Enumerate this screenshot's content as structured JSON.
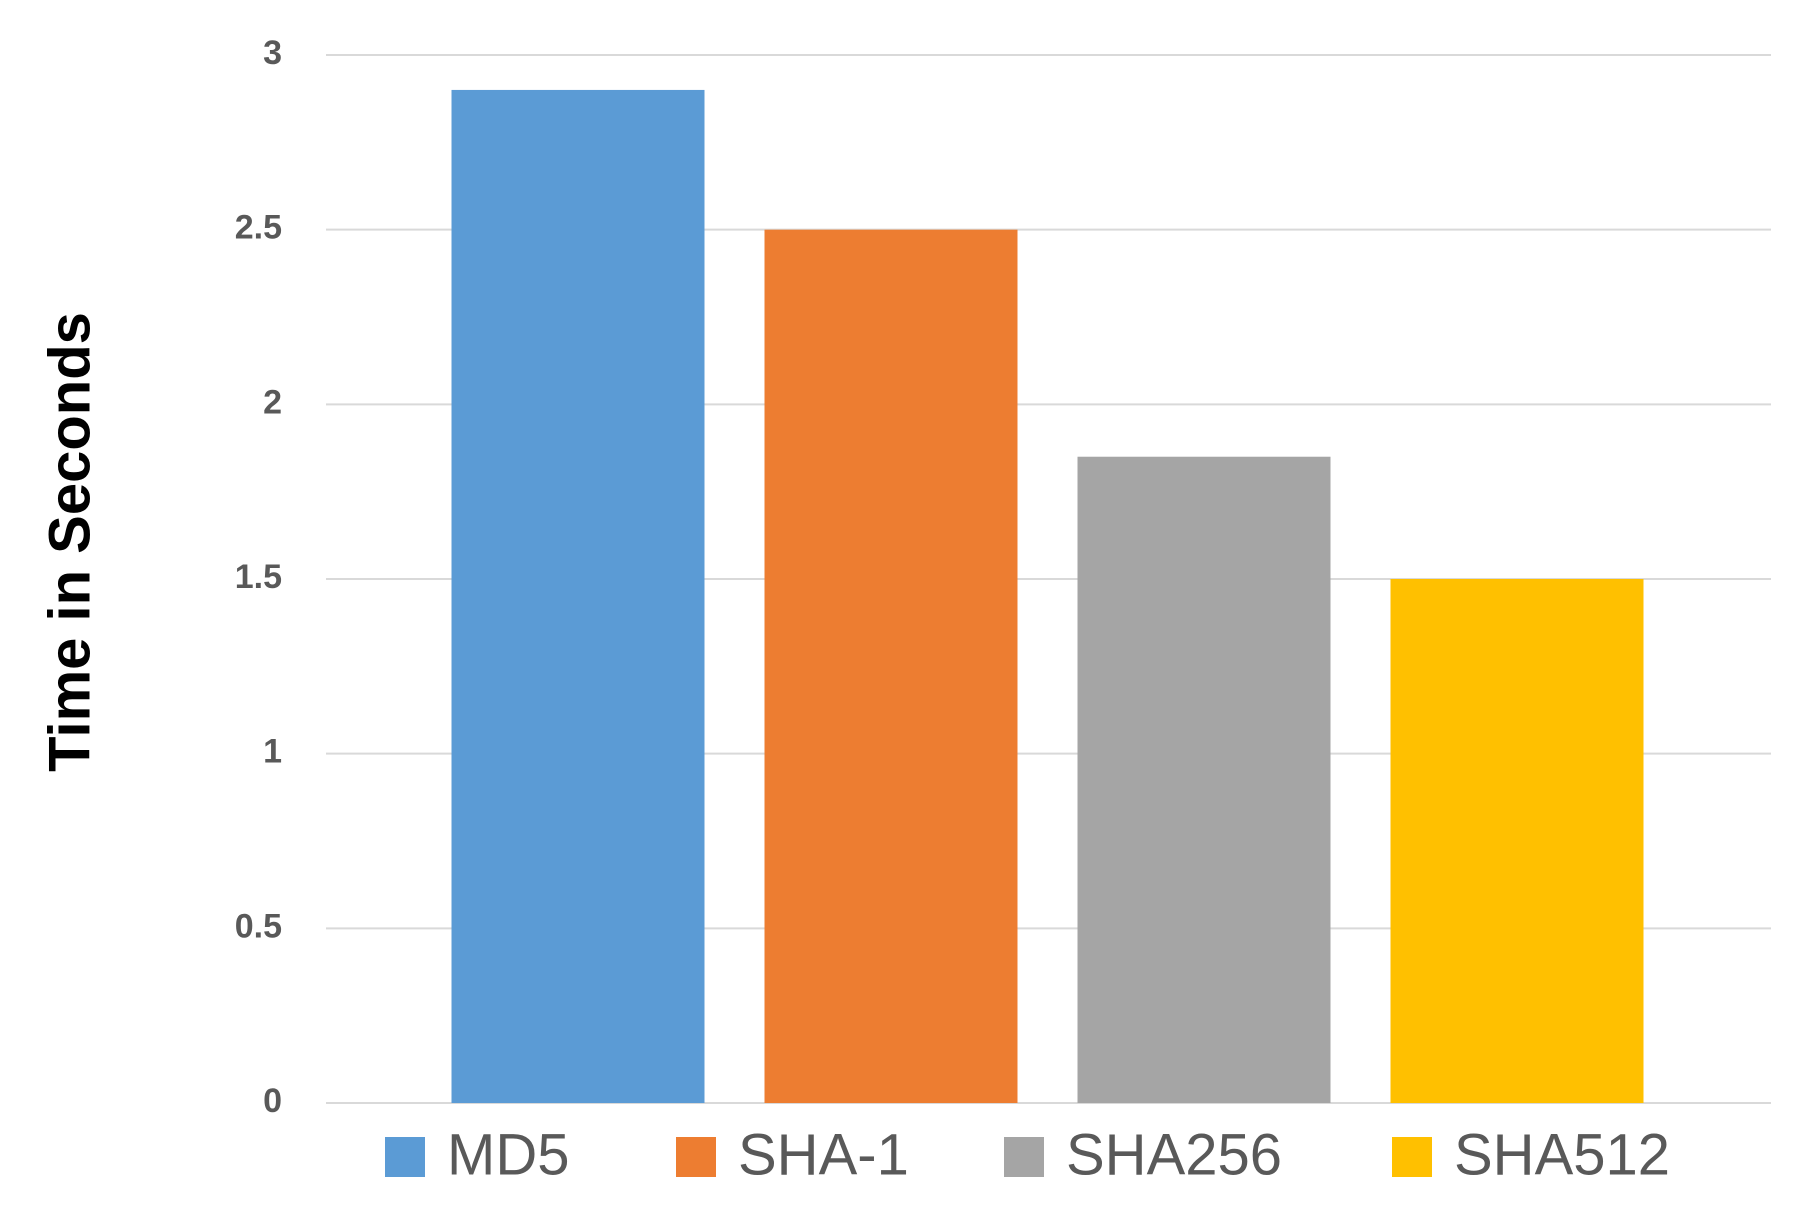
{
  "chart_data": {
    "type": "bar",
    "y_label": "Time in Seconds",
    "series": [
      {
        "name": "MD5",
        "color": "#5b9bd5",
        "values": [
          2.9
        ]
      },
      {
        "name": "SHA-1",
        "color": "#ed7d31",
        "values": [
          2.5
        ]
      },
      {
        "name": "SHA256",
        "color": "#a5a5a5",
        "values": [
          1.85
        ]
      },
      {
        "name": "SHA512",
        "color": "#ffc000",
        "values": [
          1.5
        ]
      }
    ],
    "ylim": [
      0,
      3
    ],
    "yticks": [
      0,
      0.5,
      1,
      1.5,
      2,
      2.5,
      3
    ],
    "grid": true,
    "legend": "bottom"
  }
}
